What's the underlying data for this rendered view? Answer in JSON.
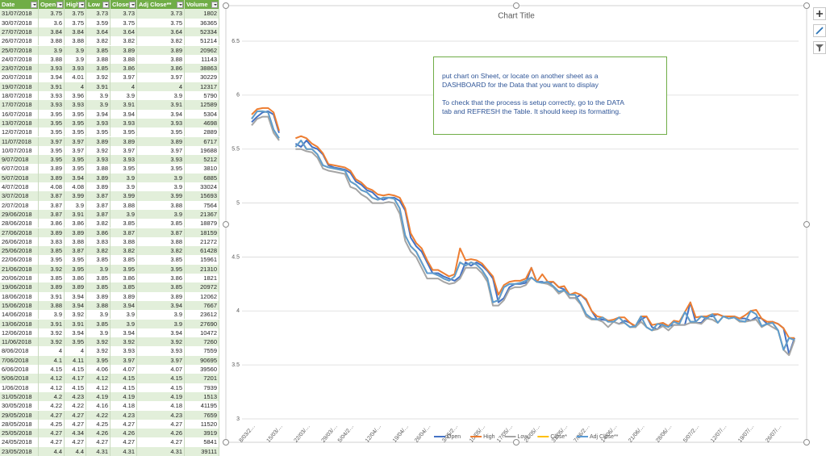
{
  "table": {
    "header": [
      "Date",
      "Open",
      "High",
      "Low",
      "Close*",
      "Adj Close**",
      "Volume"
    ],
    "rows": [
      [
        "31/07/2018",
        3.75,
        3.75,
        3.73,
        3.73,
        3.73,
        1802
      ],
      [
        "30/07/2018",
        3.6,
        3.75,
        3.59,
        3.75,
        3.75,
        36365
      ],
      [
        "27/07/2018",
        3.84,
        3.84,
        3.64,
        3.64,
        3.64,
        52334
      ],
      [
        "26/07/2018",
        3.88,
        3.88,
        3.82,
        3.82,
        3.82,
        51214
      ],
      [
        "25/07/2018",
        3.9,
        3.9,
        3.85,
        3.89,
        3.89,
        20962
      ],
      [
        "24/07/2018",
        3.88,
        3.9,
        3.88,
        3.88,
        3.88,
        11143
      ],
      [
        "23/07/2018",
        3.93,
        3.93,
        3.85,
        3.86,
        3.86,
        38863
      ],
      [
        "20/07/2018",
        3.94,
        4.01,
        3.92,
        3.97,
        3.97,
        30229
      ],
      [
        "19/07/2018",
        3.91,
        4,
        3.91,
        4,
        4,
        12317
      ],
      [
        "18/07/2018",
        3.93,
        3.96,
        3.9,
        3.9,
        3.9,
        5790
      ],
      [
        "17/07/2018",
        3.93,
        3.93,
        3.9,
        3.91,
        3.91,
        12589
      ],
      [
        "16/07/2018",
        3.95,
        3.95,
        3.94,
        3.94,
        3.94,
        5304
      ],
      [
        "13/07/2018",
        3.95,
        3.95,
        3.93,
        3.93,
        3.93,
        4698
      ],
      [
        "12/07/2018",
        3.95,
        3.95,
        3.95,
        3.95,
        3.95,
        2889
      ],
      [
        "11/07/2018",
        3.97,
        3.97,
        3.89,
        3.89,
        3.89,
        6717
      ],
      [
        "10/07/2018",
        3.95,
        3.97,
        3.92,
        3.97,
        3.97,
        19688
      ],
      [
        "9/07/2018",
        3.95,
        3.95,
        3.93,
        3.93,
        3.93,
        5212
      ],
      [
        "6/07/2018",
        3.89,
        3.95,
        3.88,
        3.95,
        3.95,
        3810
      ],
      [
        "5/07/2018",
        3.89,
        3.94,
        3.89,
        3.9,
        3.9,
        6885
      ],
      [
        "4/07/2018",
        4.08,
        4.08,
        3.89,
        3.9,
        3.9,
        33024
      ],
      [
        "3/07/2018",
        3.87,
        3.99,
        3.87,
        3.99,
        3.99,
        15693
      ],
      [
        "2/07/2018",
        3.87,
        3.9,
        3.87,
        3.88,
        3.88,
        7564
      ],
      [
        "29/06/2018",
        3.87,
        3.91,
        3.87,
        3.9,
        3.9,
        21367
      ],
      [
        "28/06/2018",
        3.86,
        3.86,
        3.82,
        3.85,
        3.85,
        18879
      ],
      [
        "27/06/2018",
        3.89,
        3.89,
        3.86,
        3.87,
        3.87,
        18159
      ],
      [
        "26/06/2018",
        3.83,
        3.88,
        3.83,
        3.88,
        3.88,
        21272
      ],
      [
        "25/06/2018",
        3.85,
        3.87,
        3.82,
        3.82,
        3.82,
        61428
      ],
      [
        "22/06/2018",
        3.95,
        3.95,
        3.85,
        3.85,
        3.85,
        15961
      ],
      [
        "21/06/2018",
        3.92,
        3.95,
        3.9,
        3.95,
        3.95,
        21310
      ],
      [
        "20/06/2018",
        3.85,
        3.86,
        3.85,
        3.86,
        3.86,
        1821
      ],
      [
        "19/06/2018",
        3.89,
        3.89,
        3.85,
        3.85,
        3.85,
        20972
      ],
      [
        "18/06/2018",
        3.91,
        3.94,
        3.89,
        3.89,
        3.89,
        12062
      ],
      [
        "15/06/2018",
        3.88,
        3.94,
        3.88,
        3.94,
        3.94,
        7667
      ],
      [
        "14/06/2018",
        3.9,
        3.92,
        3.9,
        3.9,
        3.9,
        23612
      ],
      [
        "13/06/2018",
        3.91,
        3.91,
        3.85,
        3.9,
        3.9,
        27690
      ],
      [
        "12/06/2018",
        3.92,
        3.94,
        3.9,
        3.94,
        3.94,
        10472
      ],
      [
        "11/06/2018",
        3.92,
        3.95,
        3.92,
        3.92,
        3.92,
        7260
      ],
      [
        "8/06/2018",
        4,
        4,
        3.92,
        3.93,
        3.93,
        7559
      ],
      [
        "7/06/2018",
        4.1,
        4.11,
        3.95,
        3.97,
        3.97,
        90695
      ],
      [
        "6/06/2018",
        4.15,
        4.15,
        4.06,
        4.07,
        4.07,
        39560
      ],
      [
        "5/06/2018",
        4.12,
        4.17,
        4.12,
        4.15,
        4.15,
        7201
      ],
      [
        "1/06/2018",
        4.12,
        4.15,
        4.12,
        4.15,
        4.15,
        7939
      ],
      [
        "31/05/2018",
        4.2,
        4.23,
        4.19,
        4.19,
        4.19,
        1513
      ],
      [
        "30/05/2018",
        4.22,
        4.22,
        4.16,
        4.18,
        4.18,
        41195
      ],
      [
        "29/05/2018",
        4.27,
        4.27,
        4.22,
        4.23,
        4.23,
        7659
      ],
      [
        "28/05/2018",
        4.25,
        4.27,
        4.25,
        4.27,
        4.27,
        11520
      ],
      [
        "25/05/2018",
        4.27,
        4.34,
        4.26,
        4.26,
        4.26,
        3919
      ],
      [
        "24/05/2018",
        4.27,
        4.27,
        4.27,
        4.27,
        4.27,
        5841
      ],
      [
        "23/05/2018",
        4.4,
        4.4,
        4.31,
        4.31,
        4.31,
        39111
      ]
    ]
  },
  "chart_data": {
    "type": "line",
    "title": "Chart Title",
    "categories": [
      "8/03/2…",
      null,
      null,
      null,
      null,
      "15/03/…",
      null,
      null,
      null,
      null,
      "22/03/…",
      null,
      null,
      null,
      null,
      "29/03/…",
      null,
      null,
      "5/04/2…",
      null,
      null,
      null,
      null,
      "12/04/…",
      null,
      null,
      null,
      null,
      "19/04/…",
      null,
      null,
      null,
      "26/04/…",
      null,
      null,
      null,
      null,
      "3/05/2…",
      null,
      null,
      null,
      null,
      "10/05/…",
      null,
      null,
      null,
      null,
      "17/05/…",
      null,
      null,
      null,
      null,
      "24/05/…",
      null,
      null,
      null,
      null,
      "31/05/…",
      null,
      null,
      null,
      "7/06/2…",
      null,
      null,
      null,
      null,
      "14/06/…",
      null,
      null,
      null,
      null,
      "21/06/…",
      null,
      null,
      null,
      null,
      "28/06/…",
      null,
      null,
      null,
      null,
      "5/07/2…",
      null,
      null,
      null,
      null,
      "12/07/…",
      null,
      null,
      null,
      null,
      "19/07/…",
      null,
      null,
      null,
      null,
      "26/07/…",
      null,
      null,
      null
    ],
    "series": [
      {
        "name": "Open",
        "color": "#4472c4",
        "values": [
          5.75,
          5.8,
          5.84,
          5.85,
          5.82,
          5.65,
          null,
          null,
          5.55,
          5.52,
          5.58,
          5.52,
          5.5,
          5.45,
          5.35,
          5.33,
          5.32,
          5.31,
          5.28,
          5.2,
          5.17,
          5.12,
          5.1,
          5.05,
          5.03,
          5.05,
          5.05,
          5.02,
          4.93,
          4.68,
          4.6,
          4.55,
          4.45,
          4.35,
          4.35,
          4.32,
          4.3,
          4.28,
          4.32,
          4.45,
          4.42,
          4.45,
          4.42,
          4.37,
          4.3,
          4.08,
          4.12,
          4.22,
          4.25,
          4.25,
          4.26,
          4.4,
          4.27,
          4.27,
          4.25,
          4.27,
          4.22,
          4.2,
          4.12,
          4.12,
          4.15,
          4.1,
          4,
          3.92,
          3.92,
          3.91,
          3.9,
          3.88,
          3.91,
          3.89,
          3.85,
          3.92,
          3.95,
          3.85,
          3.83,
          3.89,
          3.86,
          3.87,
          3.87,
          3.87,
          4.08,
          3.89,
          3.89,
          3.95,
          3.95,
          3.97,
          3.95,
          3.95,
          3.95,
          3.93,
          3.93,
          3.91,
          3.94,
          3.93,
          3.88,
          3.9,
          3.88,
          3.84,
          3.6,
          3.75
        ]
      },
      {
        "name": "High",
        "color": "#ed7d31",
        "values": [
          5.82,
          5.87,
          5.88,
          5.88,
          5.84,
          5.67,
          null,
          null,
          5.6,
          5.62,
          5.6,
          5.55,
          5.52,
          5.46,
          5.36,
          5.35,
          5.34,
          5.33,
          5.3,
          5.22,
          5.19,
          5.14,
          5.12,
          5.08,
          5.07,
          5.08,
          5.07,
          5.05,
          4.95,
          4.72,
          4.63,
          4.58,
          4.47,
          4.38,
          4.38,
          4.35,
          4.32,
          4.34,
          4.58,
          4.47,
          4.48,
          4.47,
          4.44,
          4.38,
          4.32,
          4.15,
          4.24,
          4.27,
          4.28,
          4.28,
          4.3,
          4.4,
          4.27,
          4.34,
          4.27,
          4.27,
          4.22,
          4.23,
          4.15,
          4.17,
          4.15,
          4.11,
          4,
          3.95,
          3.94,
          3.91,
          3.92,
          3.94,
          3.94,
          3.89,
          3.86,
          3.95,
          3.95,
          3.87,
          3.88,
          3.89,
          3.86,
          3.91,
          3.9,
          3.99,
          4.08,
          3.94,
          3.95,
          3.95,
          3.97,
          3.97,
          3.95,
          3.95,
          3.95,
          3.93,
          3.96,
          4,
          4.01,
          3.93,
          3.9,
          3.9,
          3.88,
          3.84,
          3.75,
          3.75
        ]
      },
      {
        "name": "Low",
        "color": "#a5a5a5",
        "values": [
          5.72,
          5.78,
          5.8,
          5.8,
          5.65,
          5.58,
          null,
          null,
          5.5,
          5.5,
          5.48,
          5.47,
          5.42,
          5.32,
          5.3,
          5.29,
          5.28,
          5.27,
          5.15,
          5.13,
          5.08,
          5.05,
          5.0,
          5.0,
          5.0,
          5.01,
          5.0,
          4.9,
          4.65,
          4.55,
          4.5,
          4.4,
          4.3,
          4.3,
          4.3,
          4.27,
          4.25,
          4.26,
          4.3,
          4.4,
          4.4,
          4.4,
          4.35,
          4.27,
          4.05,
          4.05,
          4.1,
          4.2,
          4.22,
          4.22,
          4.24,
          4.31,
          4.27,
          4.26,
          4.25,
          4.22,
          4.16,
          4.19,
          4.12,
          4.12,
          4.06,
          3.95,
          3.92,
          3.92,
          3.9,
          3.85,
          3.9,
          3.88,
          3.89,
          3.85,
          3.85,
          3.9,
          3.85,
          3.82,
          3.83,
          3.86,
          3.82,
          3.87,
          3.87,
          3.87,
          3.89,
          3.89,
          3.88,
          3.93,
          3.92,
          3.89,
          3.95,
          3.93,
          3.94,
          3.9,
          3.9,
          3.91,
          3.92,
          3.85,
          3.88,
          3.85,
          3.82,
          3.64,
          3.59,
          3.73
        ]
      },
      {
        "name": "Close*",
        "color": "#ffc000",
        "values": [
          5.78,
          5.85,
          5.85,
          5.84,
          5.68,
          5.6,
          null,
          null,
          5.52,
          5.58,
          5.5,
          5.5,
          5.45,
          5.35,
          5.33,
          5.32,
          5.31,
          5.3,
          5.2,
          5.17,
          5.12,
          5.1,
          5.05,
          5.03,
          5.05,
          5.05,
          5.04,
          4.95,
          4.7,
          4.6,
          4.55,
          4.45,
          4.35,
          4.35,
          4.33,
          4.3,
          4.28,
          4.32,
          4.45,
          4.42,
          4.45,
          4.43,
          4.38,
          4.3,
          4.08,
          4.1,
          4.22,
          4.25,
          4.25,
          4.26,
          4.28,
          4.31,
          4.27,
          4.26,
          4.27,
          4.23,
          4.18,
          4.19,
          4.15,
          4.15,
          4.07,
          3.97,
          3.93,
          3.92,
          3.94,
          3.9,
          3.9,
          3.94,
          3.89,
          3.85,
          3.86,
          3.95,
          3.85,
          3.82,
          3.88,
          3.87,
          3.85,
          3.9,
          3.88,
          3.99,
          3.9,
          3.9,
          3.95,
          3.93,
          3.97,
          3.89,
          3.95,
          3.93,
          3.94,
          3.91,
          3.9,
          4,
          3.97,
          3.86,
          3.88,
          3.89,
          3.82,
          3.64,
          3.75,
          3.73
        ]
      },
      {
        "name": "Adj Close**",
        "color": "#5b9bd5",
        "values": [
          5.78,
          5.85,
          5.85,
          5.84,
          5.68,
          5.6,
          null,
          null,
          5.52,
          5.58,
          5.5,
          5.5,
          5.45,
          5.35,
          5.33,
          5.32,
          5.31,
          5.3,
          5.2,
          5.17,
          5.12,
          5.1,
          5.05,
          5.03,
          5.05,
          5.05,
          5.04,
          4.95,
          4.7,
          4.6,
          4.55,
          4.45,
          4.35,
          4.35,
          4.33,
          4.3,
          4.28,
          4.32,
          4.45,
          4.42,
          4.45,
          4.43,
          4.38,
          4.3,
          4.08,
          4.1,
          4.22,
          4.25,
          4.25,
          4.26,
          4.28,
          4.31,
          4.27,
          4.26,
          4.27,
          4.23,
          4.18,
          4.19,
          4.15,
          4.15,
          4.07,
          3.97,
          3.93,
          3.92,
          3.94,
          3.9,
          3.9,
          3.94,
          3.89,
          3.85,
          3.86,
          3.95,
          3.85,
          3.82,
          3.88,
          3.87,
          3.85,
          3.9,
          3.88,
          3.99,
          3.9,
          3.9,
          3.95,
          3.93,
          3.97,
          3.89,
          3.95,
          3.93,
          3.94,
          3.91,
          3.9,
          4,
          3.97,
          3.86,
          3.88,
          3.89,
          3.82,
          3.64,
          3.75,
          3.73
        ]
      }
    ],
    "ylim": [
      3,
      6.5
    ],
    "yticks": [
      3,
      3.5,
      4,
      4.5,
      5,
      5.5,
      6,
      6.5
    ],
    "grid": true,
    "legend": "bottom"
  },
  "note": {
    "paragraphs": [
      "put chart on Sheet, or locate on another sheet as a DASHBOARD for the Data that you want to display",
      "To check that the process is setup correctly, go to the DATA tab and REFRESH the Table. It should keep its formatting."
    ]
  }
}
